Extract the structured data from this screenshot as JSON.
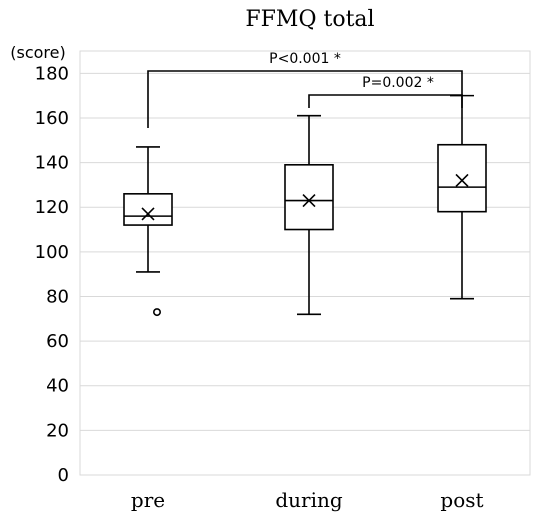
{
  "chart_data": {
    "type": "boxplot",
    "title": "FFMQ total",
    "ylabel": "(score)",
    "xlabel": "",
    "ylim": [
      0,
      190
    ],
    "yticks": [
      0,
      20,
      40,
      60,
      80,
      100,
      120,
      140,
      160,
      180
    ],
    "grid": true,
    "categories": [
      "pre",
      "during",
      "post"
    ],
    "boxes": [
      {
        "category": "pre",
        "whisker_low": 91,
        "q1": 112,
        "median": 116,
        "q3": 126,
        "whisker_high": 147,
        "mean": 117,
        "outliers": [
          73
        ]
      },
      {
        "category": "during",
        "whisker_low": 72,
        "q1": 110,
        "median": 123,
        "q3": 139,
        "whisker_high": 161,
        "mean": 123,
        "outliers": []
      },
      {
        "category": "post",
        "whisker_low": 79,
        "q1": 118,
        "median": 129,
        "q3": 148,
        "whisker_high": 170,
        "mean": 132,
        "outliers": []
      }
    ],
    "annotations": [
      {
        "label": "P<0.001 *",
        "from": "pre",
        "to": "post",
        "level": 1
      },
      {
        "label": "P=0.002 *",
        "from": "during",
        "to": "post",
        "level": 2
      }
    ]
  }
}
